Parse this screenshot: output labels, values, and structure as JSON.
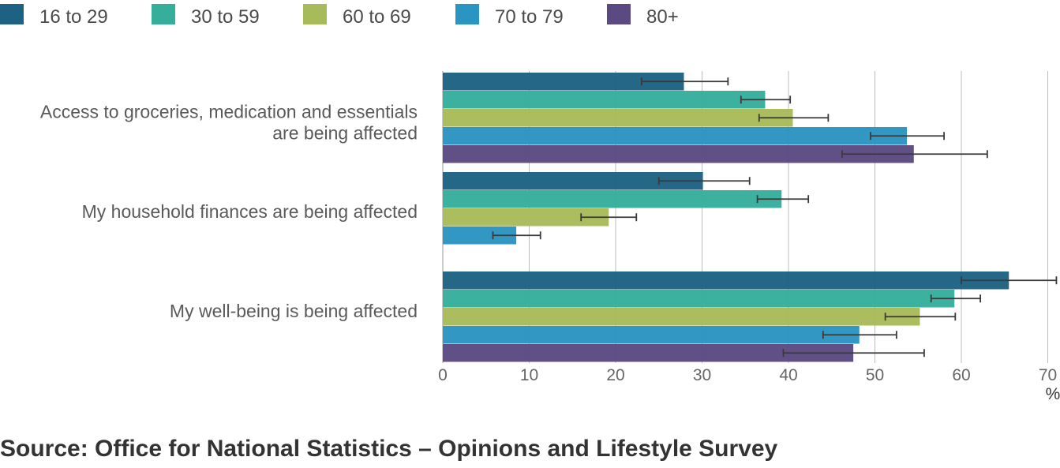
{
  "chart_data": {
    "type": "bar",
    "orientation": "horizontal",
    "title": "",
    "xlabel": "",
    "unit_label": "%",
    "xlim": [
      0,
      70
    ],
    "x_ticks": [
      "0",
      "10",
      "20",
      "30",
      "40",
      "50",
      "60",
      "70"
    ],
    "grid": true,
    "legend_position": "top-left",
    "categories": [
      [
        "Access to groceries, medication and essentials",
        "are being affected"
      ],
      [
        "My household finances are being affected"
      ],
      [
        "My well-being is being affected"
      ]
    ],
    "series": [
      {
        "name": "16 to 29",
        "color": "#1d6282",
        "values": [
          27.9,
          30.1,
          65.5
        ],
        "ci_low": [
          23.0,
          25.0,
          60.0
        ],
        "ci_high": [
          33.0,
          35.5,
          71.0
        ]
      },
      {
        "name": "30 to 59",
        "color": "#36ae9c",
        "values": [
          37.3,
          39.2,
          59.2
        ],
        "ci_low": [
          34.5,
          36.4,
          56.5
        ],
        "ci_high": [
          40.2,
          42.3,
          62.2
        ]
      },
      {
        "name": "60 to 69",
        "color": "#a8bb5a",
        "values": [
          40.5,
          19.2,
          55.2
        ],
        "ci_low": [
          36.6,
          16.0,
          51.2
        ],
        "ci_high": [
          44.6,
          22.4,
          59.3
        ]
      },
      {
        "name": "70 to 79",
        "color": "#2b95c1",
        "values": [
          53.7,
          8.5,
          48.2
        ],
        "ci_low": [
          49.5,
          5.8,
          44.0
        ],
        "ci_high": [
          58.0,
          11.3,
          52.5
        ]
      },
      {
        "name": "80+",
        "color": "#5b4a82",
        "values": [
          54.5,
          null,
          47.5
        ],
        "ci_low": [
          46.2,
          null,
          39.4
        ],
        "ci_high": [
          63.0,
          null,
          55.7
        ]
      }
    ]
  },
  "source": "Source: Office for National Statistics – Opinions and Lifestyle Survey"
}
